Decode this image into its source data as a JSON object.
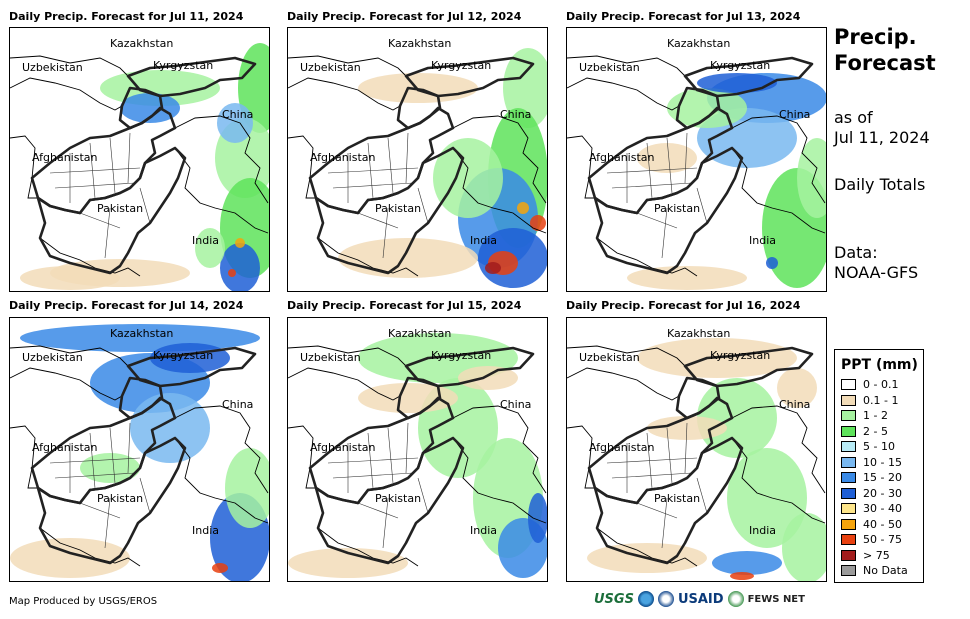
{
  "panels": [
    {
      "title": "Daily Precip. Forecast for Jul 11, 2024",
      "pattern": "p1"
    },
    {
      "title": "Daily Precip. Forecast for Jul 12, 2024",
      "pattern": "p2"
    },
    {
      "title": "Daily Precip. Forecast for Jul 13, 2024",
      "pattern": "p3"
    },
    {
      "title": "Daily Precip. Forecast for Jul 14, 2024",
      "pattern": "p4"
    },
    {
      "title": "Daily Precip. Forecast for Jul 15, 2024",
      "pattern": "p5"
    },
    {
      "title": "Daily Precip. Forecast for Jul 16, 2024",
      "pattern": "p6"
    }
  ],
  "places": {
    "kazakhstan": "Kazakhstan",
    "uzbekistan": "Uzbekistan",
    "kyrgyzstan": "Kyrgyzstan",
    "china": "China",
    "afghanistan": "Afghanistan",
    "pakistan": "Pakistan",
    "india": "India"
  },
  "side": {
    "title_line1": "Precip.",
    "title_line2": "Forecast",
    "asof_line1": "as of",
    "asof_line2": "Jul 11, 2024",
    "totals": "Daily Totals",
    "data_line1": "Data:",
    "data_line2": "NOAA-GFS"
  },
  "legend": {
    "title": "PPT (mm)",
    "items": [
      {
        "label": "0 - 0.1",
        "color": "#ffffff"
      },
      {
        "label": "0.1 - 1",
        "color": "#f2dcb8"
      },
      {
        "label": "1 - 2",
        "color": "#a6f2a0"
      },
      {
        "label": "2 - 5",
        "color": "#5ee35b"
      },
      {
        "label": "5 - 10",
        "color": "#b8ecf7"
      },
      {
        "label": "10 - 15",
        "color": "#79b8f0"
      },
      {
        "label": "15 - 20",
        "color": "#3a8ae6"
      },
      {
        "label": "20 - 30",
        "color": "#1f5fd6"
      },
      {
        "label": "30 - 40",
        "color": "#fde58a"
      },
      {
        "label": "40 - 50",
        "color": "#f5a40c"
      },
      {
        "label": "50 - 75",
        "color": "#e8400f"
      },
      {
        "label": "> 75",
        "color": "#a21c1c"
      },
      {
        "label": "No Data",
        "color": "#9a9a9a"
      }
    ]
  },
  "credit": "Map Produced by USGS/EROS",
  "logos": {
    "usgs": "USGS",
    "usaid": "USAID",
    "fews": "FEWS NET"
  }
}
